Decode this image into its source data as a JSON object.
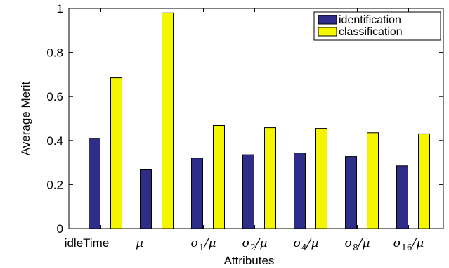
{
  "chart_data": {
    "type": "bar",
    "categories": [
      "idleTime",
      "μ",
      "σ1/μ",
      "σ2/μ",
      "σ4/μ",
      "σ8/μ",
      "σ16/μ"
    ],
    "category_parts": [
      {
        "base": "idleTime",
        "sub": "",
        "suffix": "",
        "math": false
      },
      {
        "base": "μ",
        "sub": "",
        "suffix": "",
        "math": true
      },
      {
        "base": "σ",
        "sub": "1",
        "suffix": "/μ",
        "math": true
      },
      {
        "base": "σ",
        "sub": "2",
        "suffix": "/μ",
        "math": true
      },
      {
        "base": "σ",
        "sub": "4",
        "suffix": "/μ",
        "math": true
      },
      {
        "base": "σ",
        "sub": "8",
        "suffix": "/μ",
        "math": true
      },
      {
        "base": "σ",
        "sub": "16",
        "suffix": "/μ",
        "math": true
      }
    ],
    "series": [
      {
        "name": "identification",
        "color": "#2e2e8a",
        "values": [
          0.41,
          0.27,
          0.32,
          0.335,
          0.343,
          0.327,
          0.285
        ]
      },
      {
        "name": "classification",
        "color": "#f5f500",
        "values": [
          0.685,
          0.98,
          0.468,
          0.458,
          0.455,
          0.435,
          0.43
        ]
      }
    ],
    "xlabel": "Attributes",
    "ylabel": "Average Merit",
    "ylim": [
      0,
      1
    ],
    "yticks": [
      "0",
      "0.2",
      "0.4",
      "0.6",
      "0.8",
      "1"
    ],
    "legend_position": "top-right",
    "grid": false
  }
}
